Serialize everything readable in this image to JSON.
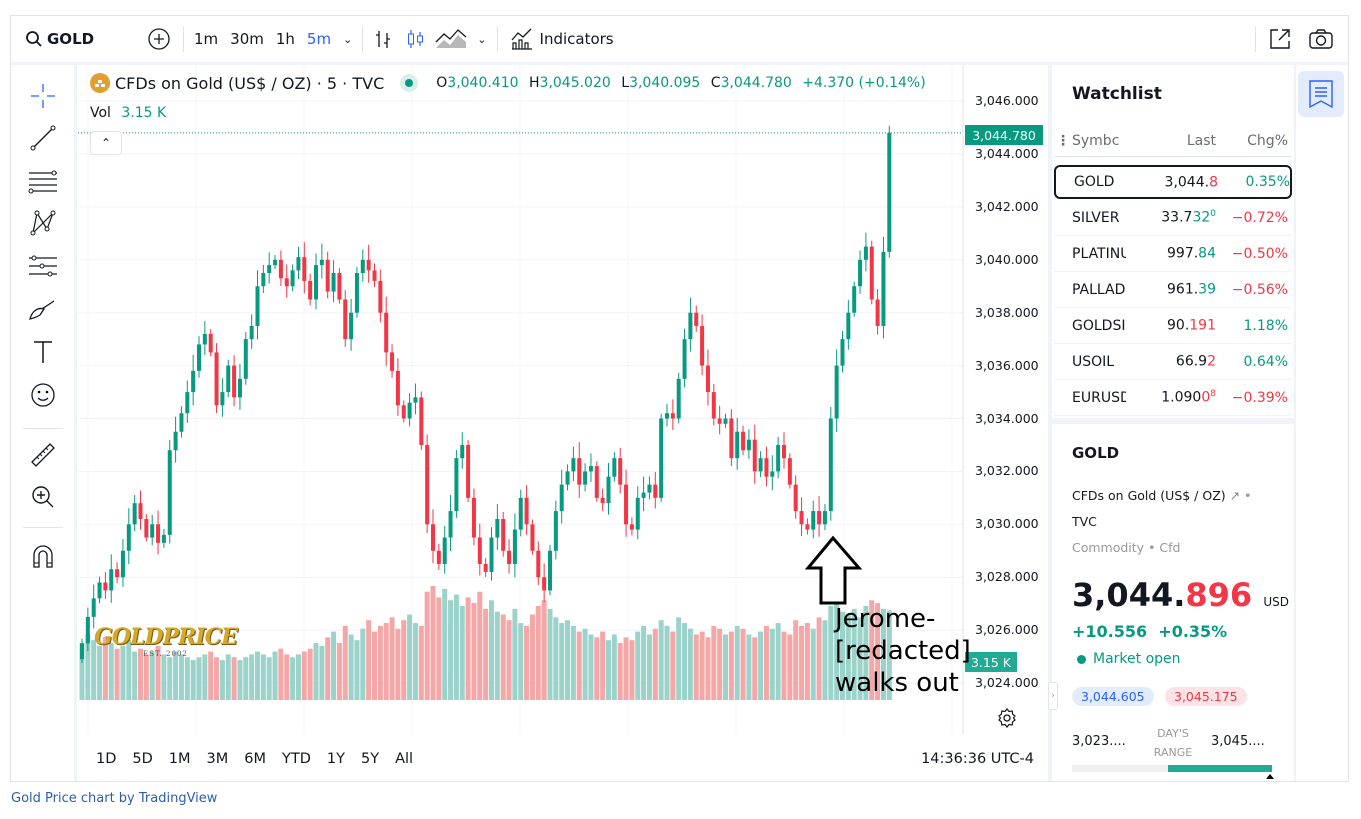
{
  "toolbar": {
    "symbol": "GOLD",
    "intervals": [
      "1m",
      "30m",
      "1h",
      "5m"
    ],
    "active_interval": "5m",
    "indicators_label": "Indicators"
  },
  "legend": {
    "title": "CFDs on Gold (US$ / OZ) · 5 · TVC",
    "o_label": "O",
    "o": "3,040.410",
    "h_label": "H",
    "h": "3,045.020",
    "l_label": "L",
    "l": "3,040.095",
    "c_label": "C",
    "c": "3,044.780",
    "change": "+4.370 (+0.14%)",
    "vol_label": "Vol",
    "vol": "3.15 K"
  },
  "price_axis": {
    "ticks": [
      "3,046.000",
      "3,044.000",
      "3,042.000",
      "3,040.000",
      "3,038.000",
      "3,036.000",
      "3,034.000",
      "3,032.000",
      "3,030.000",
      "3,028.000",
      "3,026.000",
      "3,024.000"
    ],
    "last_price": "3,044.780",
    "vol_badge": "3.15 K"
  },
  "timebar": {
    "ranges": [
      "1D",
      "5D",
      "1M",
      "3M",
      "6M",
      "YTD",
      "1Y",
      "5Y",
      "All"
    ],
    "clock": "14:36:36 UTC-4"
  },
  "watermark": {
    "text": "GOLDPRICE",
    "sub": "EST. 2002"
  },
  "annotation": {
    "text": "Jerome-[redacted] walks out"
  },
  "footer": {
    "credit": "Gold Price chart by TradingView"
  },
  "colors": {
    "up": "#089981",
    "down": "#f23645",
    "up_vol": "#9bd3ca",
    "down_vol": "#f5a6a6",
    "accent": "#2962ff"
  },
  "watchlist": {
    "title": "Watchlist",
    "headers": {
      "symbol": "Symbc",
      "last": "Last",
      "chg": "Chg%"
    },
    "rows": [
      {
        "sym": "GOLD",
        "last_a": "3,044.",
        "last_b": "8",
        "last_c": "",
        "last_color": "down",
        "chg": "0.35%",
        "chg_color": "up"
      },
      {
        "sym": "SILVER",
        "last_a": "33.7",
        "last_b": "32",
        "last_c": "0",
        "last_color": "up",
        "chg": "−0.72%",
        "chg_color": "down"
      },
      {
        "sym": "PLATINU",
        "last_a": "997.",
        "last_b": "84",
        "last_c": "",
        "last_color": "up",
        "chg": "−0.50%",
        "chg_color": "down"
      },
      {
        "sym": "PALLADI",
        "last_a": "961.",
        "last_b": "39",
        "last_c": "",
        "last_color": "up",
        "chg": "−0.56%",
        "chg_color": "down"
      },
      {
        "sym": "GOLDSIL",
        "last_a": "90.",
        "last_b": "191",
        "last_c": "",
        "last_color": "down",
        "chg": "1.18%",
        "chg_color": "up"
      },
      {
        "sym": "USOIL",
        "last_a": "66.9",
        "last_b": "2",
        "last_c": "",
        "last_color": "down",
        "chg": "0.64%",
        "chg_color": "up"
      },
      {
        "sym": "EURUSD",
        "last_a": "1.090",
        "last_b": "0",
        "last_c": "8",
        "last_color": "down",
        "chg": "−0.39%",
        "chg_color": "down"
      }
    ]
  },
  "details": {
    "symbol": "GOLD",
    "name": "CFDs on Gold (US$ / OZ)",
    "exchange": "TVC",
    "category": "Commodity",
    "type": "Cfd",
    "price_main": "3,044.",
    "price_frac": "896",
    "currency": "USD",
    "change": "+10.556",
    "change_pct": "+0.35%",
    "status": "Market open",
    "bid": "3,044.605",
    "ask": "3,045.175",
    "day_low": "3,023....",
    "day_high": "3,045....",
    "range_label_1": "DAY'S",
    "range_label_2": "RANGE",
    "day_range_position": 0.99
  },
  "chart_data": {
    "type": "candlestick",
    "price_range": [
      3024,
      3046
    ],
    "closes": [
      3025.5,
      3026.5,
      3027.2,
      3027.8,
      3027.5,
      3028.3,
      3028.0,
      3029.0,
      3030.0,
      3030.8,
      3030.2,
      3029.5,
      3030.0,
      3029.3,
      3029.6,
      3032.8,
      3033.5,
      3034.2,
      3035.0,
      3035.8,
      3036.8,
      3037.2,
      3036.5,
      3034.5,
      3035.0,
      3036.0,
      3034.8,
      3035.5,
      3037.0,
      3037.5,
      3039.0,
      3039.5,
      3039.8,
      3040.0,
      3039.3,
      3039.0,
      3039.6,
      3040.1,
      3039.2,
      3038.5,
      3039.8,
      3040.0,
      3038.8,
      3039.5,
      3038.5,
      3037.0,
      3038.0,
      3039.5,
      3040.0,
      3039.6,
      3039.2,
      3038.0,
      3036.5,
      3035.8,
      3034.5,
      3034.0,
      3034.6,
      3034.8,
      3033.0,
      3030.0,
      3029.0,
      3028.5,
      3029.5,
      3030.5,
      3032.5,
      3033.0,
      3031.0,
      3029.5,
      3028.5,
      3028.2,
      3029.5,
      3030.2,
      3029.0,
      3028.5,
      3029.8,
      3031.0,
      3030.0,
      3029.0,
      3028.0,
      3027.5,
      3029.0,
      3030.5,
      3031.5,
      3032.0,
      3032.5,
      3031.5,
      3032.0,
      3032.2,
      3031.0,
      3030.8,
      3031.8,
      3032.5,
      3031.5,
      3030.0,
      3029.8,
      3031.0,
      3031.2,
      3031.5,
      3031.0,
      3034.0,
      3034.2,
      3034.0,
      3035.5,
      3037.0,
      3038.0,
      3037.5,
      3036.0,
      3035.0,
      3034.0,
      3033.8,
      3034.0,
      3032.5,
      3033.5,
      3032.8,
      3033.2,
      3032.0,
      3032.5,
      3031.8,
      3032.0,
      3033.0,
      3032.5,
      3031.5,
      3030.5,
      3030.0,
      3029.8,
      3030.5,
      3030.0,
      3030.5,
      3034.0,
      3036.0,
      3037.0,
      3038.0,
      3039.0,
      3040.0,
      3040.5,
      3038.5,
      3037.5,
      3040.3,
      3044.8
    ],
    "volumes": [
      2.0,
      2.3,
      2.1,
      1.9,
      2.2,
      2.0,
      1.8,
      1.9,
      2.1,
      1.7,
      1.8,
      1.6,
      1.7,
      1.9,
      1.6,
      1.5,
      1.7,
      1.6,
      1.5,
      1.4,
      1.5,
      1.6,
      1.7,
      1.5,
      1.4,
      1.6,
      1.5,
      1.4,
      1.5,
      1.6,
      1.7,
      1.6,
      1.5,
      1.7,
      1.8,
      1.6,
      1.5,
      1.6,
      1.7,
      1.8,
      2.0,
      1.9,
      2.2,
      2.4,
      2.0,
      2.6,
      2.3,
      2.1,
      2.5,
      2.8,
      2.4,
      2.6,
      2.7,
      2.9,
      2.5,
      2.8,
      3.0,
      2.7,
      2.6,
      3.8,
      4.0,
      3.6,
      3.9,
      3.5,
      3.7,
      3.3,
      3.6,
      3.4,
      3.8,
      3.2,
      3.5,
      3.1,
      3.0,
      2.8,
      3.2,
      2.7,
      2.6,
      3.0,
      3.3,
      3.5,
      3.2,
      2.9,
      2.7,
      2.8,
      2.6,
      2.4,
      2.5,
      2.3,
      2.2,
      2.4,
      2.1,
      2.3,
      2.0,
      2.2,
      2.1,
      2.4,
      2.6,
      2.3,
      2.5,
      2.8,
      2.6,
      2.4,
      2.9,
      2.7,
      2.5,
      2.3,
      2.4,
      2.2,
      2.6,
      2.5,
      2.3,
      2.4,
      2.6,
      2.5,
      2.3,
      2.2,
      2.4,
      2.6,
      2.5,
      2.7,
      2.4,
      2.3,
      2.8,
      2.6,
      2.7,
      2.5,
      2.9,
      2.8,
      3.3,
      3.4,
      3.1,
      3.0,
      3.2,
      2.9,
      3.3,
      3.5,
      3.4,
      3.2,
      3.15
    ]
  }
}
